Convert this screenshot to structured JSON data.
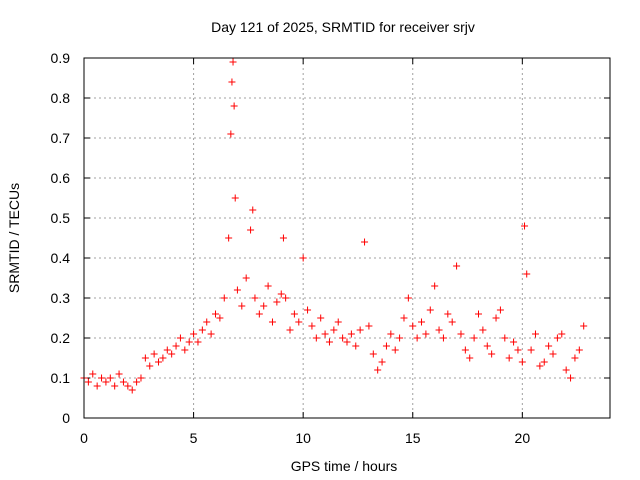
{
  "chart_data": {
    "type": "scatter",
    "title": "Day 121 of 2025, SRMTID for receiver srjv",
    "xlabel": "GPS time / hours",
    "ylabel": "SRMTID / TECUs",
    "xlim": [
      0,
      24
    ],
    "ylim": [
      0,
      0.9
    ],
    "xticks": [
      0,
      5,
      10,
      15,
      20
    ],
    "yticks": [
      0,
      0.1,
      0.2,
      0.3,
      0.4,
      0.5,
      0.6,
      0.7,
      0.8,
      0.9
    ],
    "grid": true,
    "marker": "+",
    "color": "#ff0000",
    "series": [
      {
        "name": "srjv",
        "x": [
          0.0,
          0.2,
          0.4,
          0.6,
          0.8,
          1.0,
          1.2,
          1.4,
          1.6,
          1.8,
          2.0,
          2.2,
          2.4,
          2.6,
          2.8,
          3.0,
          3.2,
          3.4,
          3.6,
          3.8,
          4.0,
          4.2,
          4.4,
          4.6,
          4.8,
          5.0,
          5.2,
          5.4,
          5.6,
          5.8,
          6.0,
          6.2,
          6.4,
          6.6,
          6.7,
          6.75,
          6.8,
          6.85,
          6.9,
          7.0,
          7.2,
          7.4,
          7.6,
          7.7,
          7.8,
          8.0,
          8.2,
          8.4,
          8.6,
          8.8,
          9.0,
          9.1,
          9.2,
          9.4,
          9.6,
          9.8,
          10.0,
          10.2,
          10.4,
          10.6,
          10.8,
          11.0,
          11.2,
          11.4,
          11.6,
          11.8,
          12.0,
          12.2,
          12.4,
          12.6,
          12.8,
          13.0,
          13.2,
          13.4,
          13.6,
          13.8,
          14.0,
          14.2,
          14.4,
          14.6,
          14.8,
          15.0,
          15.2,
          15.4,
          15.6,
          15.8,
          16.0,
          16.2,
          16.4,
          16.6,
          16.8,
          17.0,
          17.2,
          17.4,
          17.6,
          17.8,
          18.0,
          18.2,
          18.4,
          18.6,
          18.8,
          19.0,
          19.2,
          19.4,
          19.6,
          19.8,
          20.0,
          20.1,
          20.2,
          20.4,
          20.6,
          20.8,
          21.0,
          21.2,
          21.4,
          21.6,
          21.8,
          22.0,
          22.2,
          22.4,
          22.6,
          22.8
        ],
        "y": [
          0.1,
          0.09,
          0.11,
          0.08,
          0.1,
          0.09,
          0.1,
          0.08,
          0.11,
          0.09,
          0.08,
          0.07,
          0.09,
          0.1,
          0.15,
          0.13,
          0.16,
          0.14,
          0.15,
          0.17,
          0.16,
          0.18,
          0.2,
          0.17,
          0.19,
          0.21,
          0.19,
          0.22,
          0.24,
          0.21,
          0.26,
          0.25,
          0.3,
          0.45,
          0.71,
          0.84,
          0.89,
          0.78,
          0.55,
          0.32,
          0.28,
          0.35,
          0.47,
          0.52,
          0.3,
          0.26,
          0.28,
          0.33,
          0.24,
          0.29,
          0.31,
          0.45,
          0.3,
          0.22,
          0.26,
          0.24,
          0.4,
          0.27,
          0.23,
          0.2,
          0.25,
          0.21,
          0.19,
          0.22,
          0.24,
          0.2,
          0.19,
          0.21,
          0.18,
          0.22,
          0.44,
          0.23,
          0.16,
          0.12,
          0.14,
          0.18,
          0.21,
          0.17,
          0.2,
          0.25,
          0.3,
          0.23,
          0.2,
          0.24,
          0.21,
          0.27,
          0.33,
          0.22,
          0.2,
          0.26,
          0.24,
          0.38,
          0.21,
          0.17,
          0.15,
          0.2,
          0.26,
          0.22,
          0.18,
          0.16,
          0.25,
          0.27,
          0.2,
          0.15,
          0.19,
          0.17,
          0.14,
          0.48,
          0.36,
          0.17,
          0.21,
          0.13,
          0.14,
          0.18,
          0.16,
          0.2,
          0.21,
          0.12,
          0.1,
          0.15,
          0.17,
          0.23
        ]
      }
    ]
  }
}
